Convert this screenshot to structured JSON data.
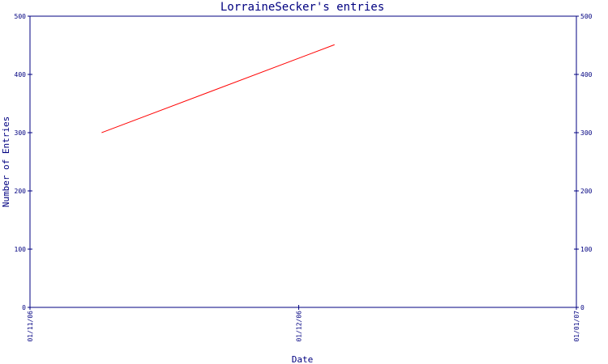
{
  "chart_data": {
    "type": "line",
    "title": "LorraineSecker's entries",
    "xlabel": "Date",
    "ylabel": "Number of Entries",
    "x_ticks": [
      "01/11/06",
      "01/12/06",
      "01/01/07"
    ],
    "xlim": [
      "01/11/06",
      "01/01/07"
    ],
    "ylim": [
      0,
      500
    ],
    "y_ticks": [
      0,
      100,
      200,
      300,
      400,
      500
    ],
    "y_ticks_right": [
      0,
      100,
      200,
      300,
      400,
      500
    ],
    "grid": false,
    "series": [
      {
        "x": [
          "09/11/06",
          "05/12/06"
        ],
        "values": [
          300,
          451
        ],
        "color": "#ff0000"
      }
    ],
    "colors": {
      "axis": "#000080",
      "text": "#000080",
      "line": "#ff0000"
    }
  }
}
